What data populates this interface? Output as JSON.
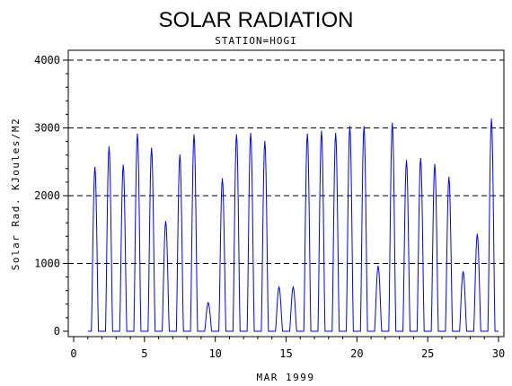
{
  "chart_data": {
    "type": "line",
    "title": "SOLAR RADIATION",
    "subtitle": "STATION=HOGI",
    "xlabel": "MAR 1999",
    "ylabel": "Solar Rad. KJoules/M2",
    "xlim": [
      0,
      30
    ],
    "ylim": [
      0,
      4000
    ],
    "x_ticks": [
      0,
      5,
      10,
      15,
      20,
      25,
      30
    ],
    "x_tick_labels": [
      "0",
      "5",
      "10",
      "15",
      "20",
      "25",
      "30"
    ],
    "y_ticks": [
      0,
      1000,
      2000,
      3000,
      4000
    ],
    "y_tick_labels": [
      "0",
      "1000",
      "2000",
      "3000",
      "4000"
    ],
    "grid": "horizontal-dashed",
    "series_color": "#0000ff",
    "daily_peaks": [
      {
        "day": 1,
        "peak": 2420
      },
      {
        "day": 2,
        "peak": 2720
      },
      {
        "day": 3,
        "peak": 2450
      },
      {
        "day": 4,
        "peak": 2910
      },
      {
        "day": 5,
        "peak": 2700
      },
      {
        "day": 6,
        "peak": 1620
      },
      {
        "day": 7,
        "peak": 2600
      },
      {
        "day": 8,
        "peak": 2900
      },
      {
        "day": 9,
        "peak": 420
      },
      {
        "day": 10,
        "peak": 2250
      },
      {
        "day": 11,
        "peak": 2900
      },
      {
        "day": 12,
        "peak": 2920
      },
      {
        "day": 13,
        "peak": 2800
      },
      {
        "day": 14,
        "peak": 650
      },
      {
        "day": 15,
        "peak": 650
      },
      {
        "day": 16,
        "peak": 2910
      },
      {
        "day": 17,
        "peak": 2950
      },
      {
        "day": 18,
        "peak": 2920
      },
      {
        "day": 19,
        "peak": 3020
      },
      {
        "day": 20,
        "peak": 3020
      },
      {
        "day": 21,
        "peak": 960
      },
      {
        "day": 22,
        "peak": 3070
      },
      {
        "day": 23,
        "peak": 2520
      },
      {
        "day": 24,
        "peak": 2550
      },
      {
        "day": 25,
        "peak": 2460
      },
      {
        "day": 26,
        "peak": 2270
      },
      {
        "day": 27,
        "peak": 880
      },
      {
        "day": 28,
        "peak": 1430
      },
      {
        "day": 29,
        "peak": 3130
      }
    ]
  }
}
